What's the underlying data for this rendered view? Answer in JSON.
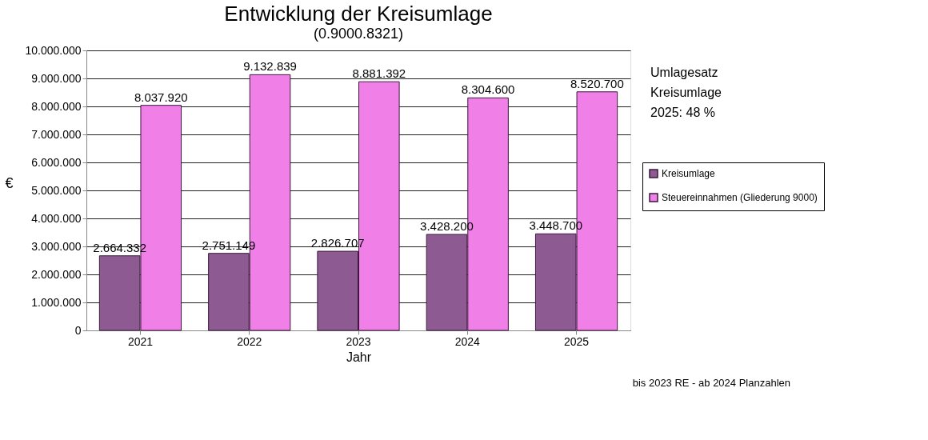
{
  "chart_data": {
    "type": "bar",
    "title": "Entwicklung der Kreisumlage",
    "subtitle": "(0.9000.8321)",
    "xlabel": "Jahr",
    "ylabel": "€",
    "categories": [
      "2021",
      "2022",
      "2023",
      "2024",
      "2025"
    ],
    "series": [
      {
        "name": "Kreisumlage",
        "color": "#8e5a92",
        "values": [
          2664332,
          2751149,
          2826707,
          3428200,
          3448700
        ]
      },
      {
        "name": "Steuereinnahmen (Gliederung 9000)",
        "color": "#f07fe8",
        "values": [
          8037920,
          9132839,
          8881392,
          8304600,
          8520700
        ]
      }
    ],
    "value_labels": [
      [
        "2.664.332",
        "2.751.149",
        "2.826.707",
        "3.428.200",
        "3.448.700"
      ],
      [
        "8.037.920",
        "9.132.839",
        "8.881.392",
        "8.304.600",
        "8.520.700"
      ]
    ],
    "ylim": [
      0,
      10000000
    ],
    "yticks": [
      {
        "value": 0,
        "label": "0"
      },
      {
        "value": 1000000,
        "label": "1.000.000"
      },
      {
        "value": 2000000,
        "label": "2.000.000"
      },
      {
        "value": 3000000,
        "label": "3.000.000"
      },
      {
        "value": 4000000,
        "label": "4.000.000"
      },
      {
        "value": 5000000,
        "label": "5.000.000"
      },
      {
        "value": 6000000,
        "label": "6.000.000"
      },
      {
        "value": 7000000,
        "label": "7.000.000"
      },
      {
        "value": 8000000,
        "label": "8.000.000"
      },
      {
        "value": 9000000,
        "label": "9.000.000"
      },
      {
        "value": 10000000,
        "label": "10.000.000"
      }
    ],
    "grid": "y",
    "legend": "right",
    "annotations": [
      "Umlagesatz\nKreisumlage\n2025: 48 %",
      "bis 2023 RE - ab 2024 Planzahlen"
    ]
  }
}
